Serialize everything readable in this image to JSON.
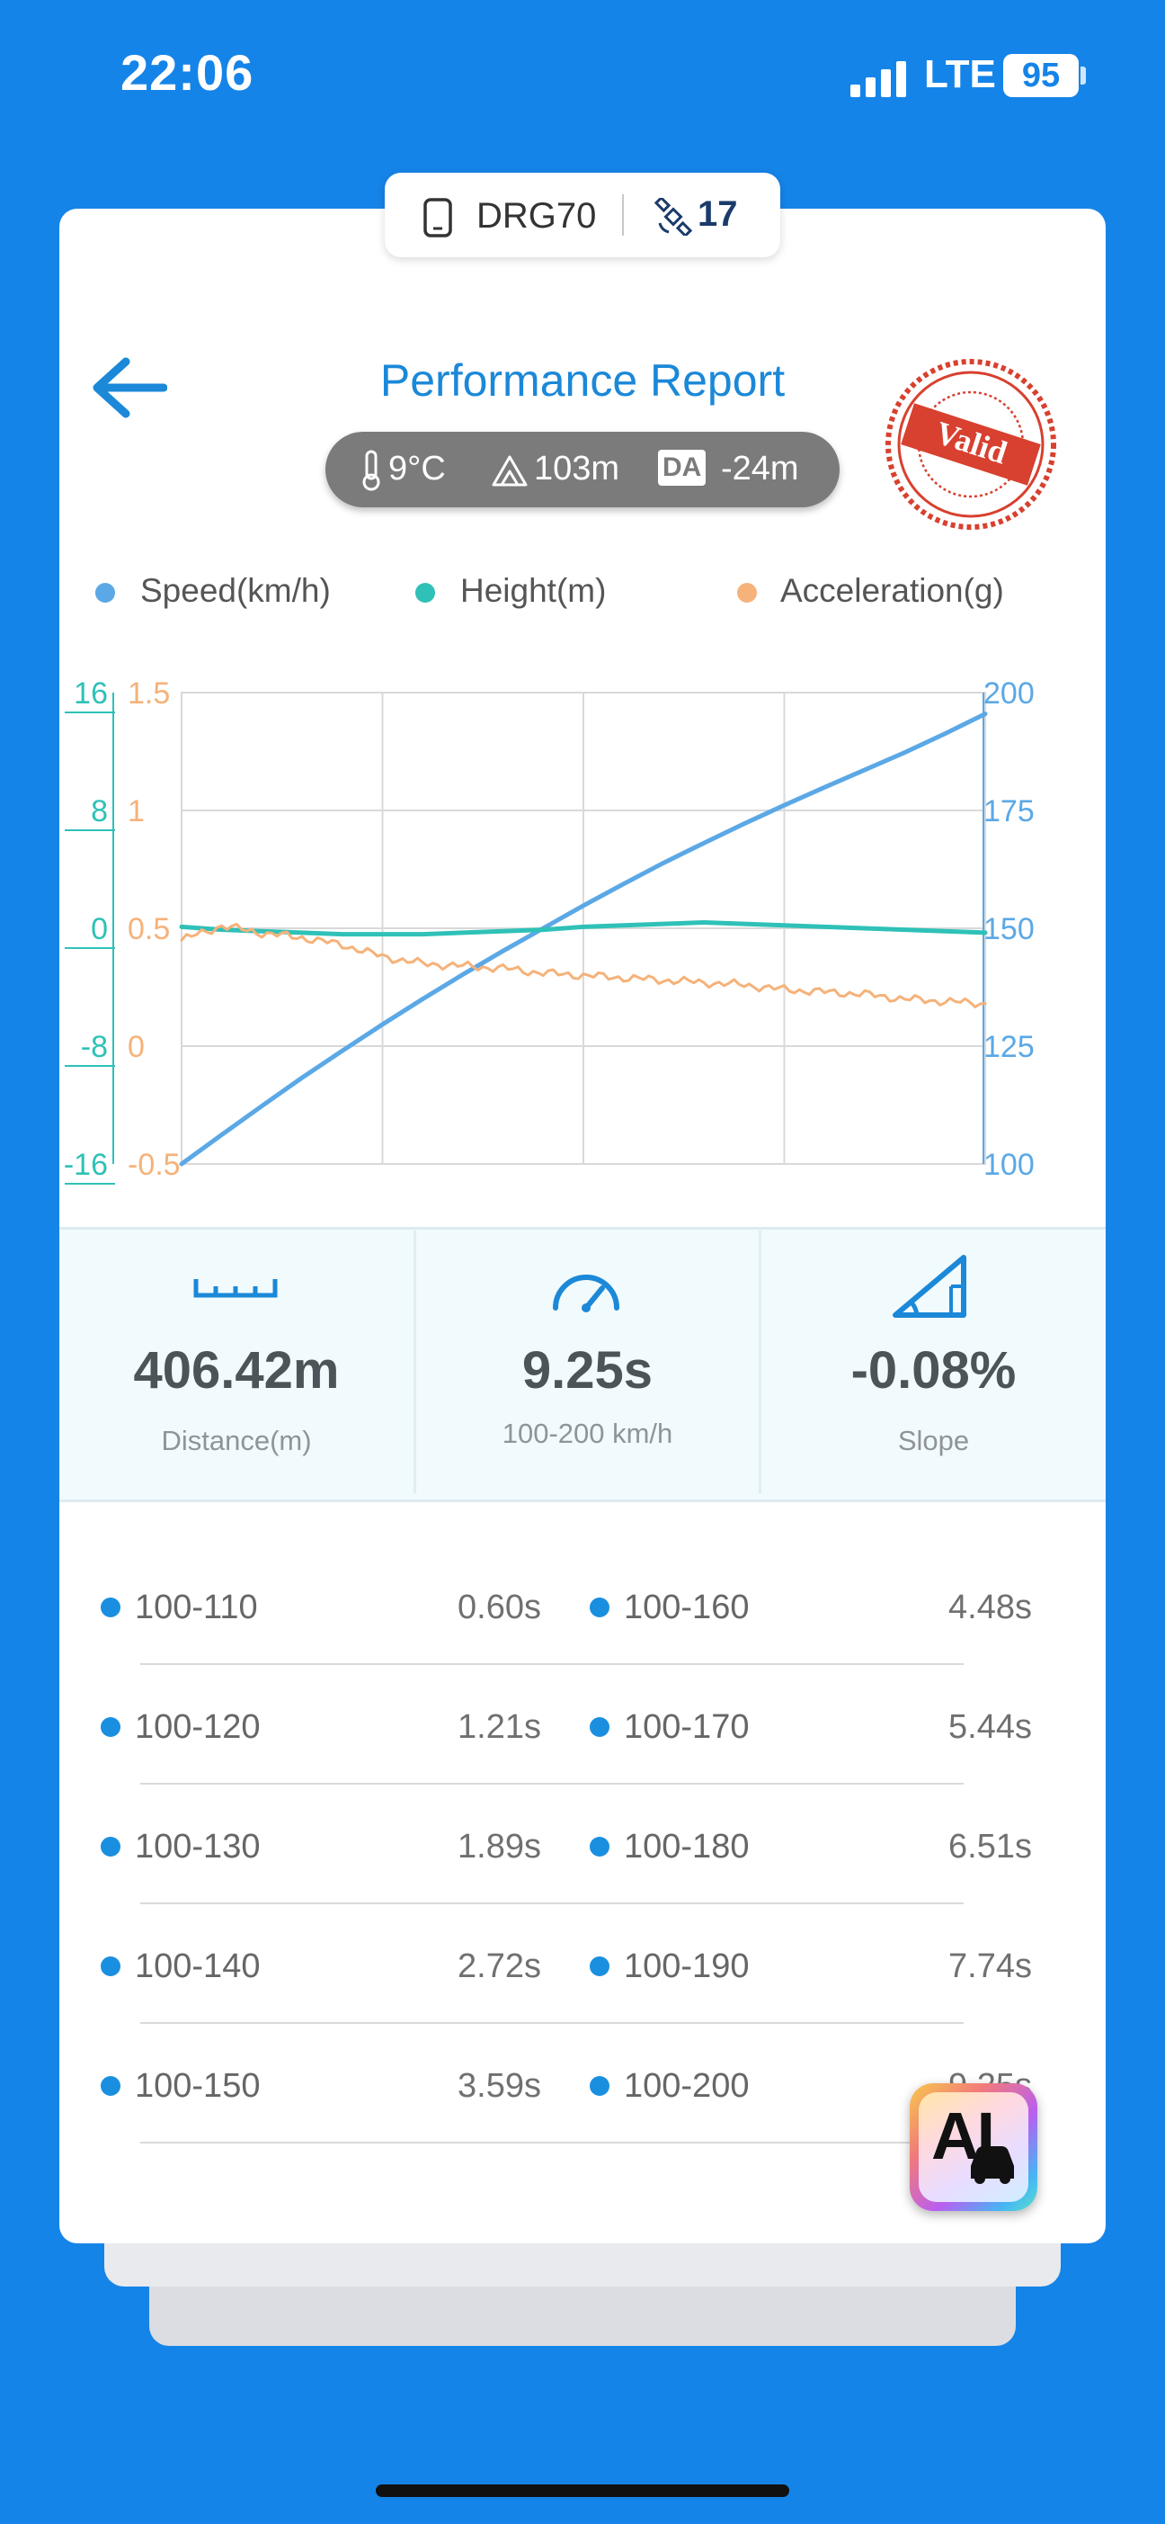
{
  "status_bar": {
    "time": "22:06",
    "network": "LTE",
    "battery": "95"
  },
  "device": {
    "name": "DRG70",
    "satellites": "17",
    "icons": [
      "phone-icon",
      "satellite-icon"
    ]
  },
  "header": {
    "title": "Performance Report",
    "stamp_text": "Valid"
  },
  "conditions": {
    "temperature": "9°C",
    "altitude": "103m",
    "da_label": "DA",
    "density_altitude": "-24m"
  },
  "legend": [
    {
      "label": "Speed(km/h)",
      "color": "#5ba8e6"
    },
    {
      "label": "Height(m)",
      "color": "#2fc1b7"
    },
    {
      "label": "Acceleration(g)",
      "color": "#f5b27a"
    }
  ],
  "chart_data": {
    "type": "line",
    "grid": true,
    "legend_position": "top",
    "axes": {
      "height_axis": {
        "ticks": [
          "16",
          "8",
          "0",
          "-8",
          "-16"
        ],
        "range": [
          -16,
          16
        ],
        "color": "#2fc1b7"
      },
      "accel_axis": {
        "ticks": [
          "1.5",
          "1",
          "0.5",
          "0",
          "-0.5"
        ],
        "range": [
          -0.5,
          1.5
        ],
        "color": "#f5b27a"
      },
      "speed_axis": {
        "ticks": [
          "200",
          "175",
          "150",
          "125",
          "100"
        ],
        "range": [
          100,
          200
        ],
        "color": "#5ba8e6"
      }
    },
    "x": [
      0,
      0.05,
      0.1,
      0.15,
      0.2,
      0.25,
      0.3,
      0.35,
      0.4,
      0.45,
      0.5,
      0.55,
      0.6,
      0.65,
      0.7,
      0.75,
      0.8,
      0.85,
      0.9,
      0.95,
      1.0
    ],
    "series": [
      {
        "name": "Speed(km/h)",
        "axis": "speed_axis",
        "color": "#5ba8e6",
        "values": [
          100,
          106.2,
          112.3,
          118.3,
          124.0,
          129.6,
          135.0,
          140.2,
          145.2,
          150.0,
          154.8,
          159.4,
          163.9,
          168.1,
          172.2,
          176.1,
          179.9,
          183.6,
          187.3,
          191.3,
          195.5
        ]
      },
      {
        "name": "Height(m)",
        "axis": "height_axis",
        "color": "#2fc1b7",
        "values": [
          0.1,
          -0.1,
          -0.2,
          -0.3,
          -0.4,
          -0.4,
          -0.4,
          -0.3,
          -0.2,
          -0.1,
          0.1,
          0.2,
          0.3,
          0.4,
          0.3,
          0.2,
          0.1,
          0.0,
          -0.1,
          -0.2,
          -0.3
        ]
      },
      {
        "name": "Acceleration(g)",
        "axis": "accel_axis",
        "color": "#f5b27a",
        "values": [
          0.45,
          0.51,
          0.48,
          0.46,
          0.43,
          0.38,
          0.35,
          0.34,
          0.33,
          0.31,
          0.3,
          0.29,
          0.28,
          0.27,
          0.26,
          0.24,
          0.23,
          0.22,
          0.2,
          0.19,
          0.18
        ]
      }
    ]
  },
  "metrics": [
    {
      "value": "406.42m",
      "label": "Distance(m)",
      "icon": "ruler-icon"
    },
    {
      "value": "9.25s",
      "label": "100-200 km/h",
      "icon": "speedometer-icon"
    },
    {
      "value": "-0.08%",
      "label": "Slope",
      "icon": "slope-icon"
    }
  ],
  "splits": [
    {
      "range": "100-110",
      "time": "0.60s"
    },
    {
      "range": "100-120",
      "time": "1.21s"
    },
    {
      "range": "100-130",
      "time": "1.89s"
    },
    {
      "range": "100-140",
      "time": "2.72s"
    },
    {
      "range": "100-150",
      "time": "3.59s"
    },
    {
      "range": "100-160",
      "time": "4.48s"
    },
    {
      "range": "100-170",
      "time": "5.44s"
    },
    {
      "range": "100-180",
      "time": "6.51s"
    },
    {
      "range": "100-190",
      "time": "7.74s"
    },
    {
      "range": "100-200",
      "time": "9.25s"
    }
  ],
  "ai_button": {
    "label": "AI"
  }
}
